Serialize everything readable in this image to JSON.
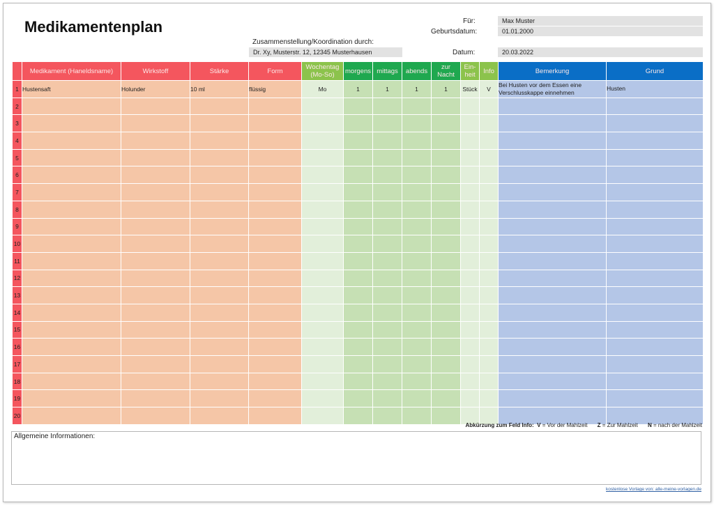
{
  "header": {
    "title": "Medikamentenplan",
    "coordination_label": "Zusammenstellung/Koordination durch:",
    "coordination_value": "Dr. Xy, Musterstr. 12, 12345 Musterhausen",
    "fuer_label": "Für:",
    "fuer_value": "Max Muster",
    "geburtsdatum_label": "Geburtsdatum:",
    "geburtsdatum_value": "01.01.2000",
    "datum_label": "Datum:",
    "datum_value": "20.03.2022"
  },
  "table": {
    "columns": {
      "medikament": "Medikament (Haneldsname)",
      "wirkstoff": "Wirkstoff",
      "staerke": "Stärke",
      "form": "Form",
      "wochentag_1": "Wochentag",
      "wochentag_2": "(Mo-So)",
      "morgens": "morgens",
      "mittags": "mittags",
      "abends": "abends",
      "zur_nacht_1": "zur",
      "zur_nacht_2": "Nacht",
      "einheit_1": "Ein-",
      "einheit_2": "heit",
      "info": "Info",
      "bemerkung": "Bemerkung",
      "grund": "Grund"
    },
    "rows": [
      {
        "num": "1",
        "medikament": "Hustensaft",
        "wirkstoff": "Holunder",
        "staerke": "10 ml",
        "form": "flüssig",
        "wochentag": "Mo",
        "morgens": "1",
        "mittags": "1",
        "abends": "1",
        "zur_nacht": "1",
        "einheit": "Stück",
        "info": "V",
        "bemerkung": "Bei Husten vor dem Essen eine Verschlusskappe einnehmen",
        "grund": "Husten"
      },
      {
        "num": "2"
      },
      {
        "num": "3"
      },
      {
        "num": "4"
      },
      {
        "num": "5"
      },
      {
        "num": "6"
      },
      {
        "num": "7"
      },
      {
        "num": "8"
      },
      {
        "num": "9"
      },
      {
        "num": "10"
      },
      {
        "num": "11"
      },
      {
        "num": "12"
      },
      {
        "num": "13"
      },
      {
        "num": "14"
      },
      {
        "num": "15"
      },
      {
        "num": "16"
      },
      {
        "num": "17"
      },
      {
        "num": "18"
      },
      {
        "num": "19"
      },
      {
        "num": "20"
      }
    ]
  },
  "legend": {
    "label": "Abkürzung zum Feld Info:",
    "v_key": "V",
    "v_text": "= Vor der Mahlzeit",
    "z_key": "Z",
    "z_text": "= Zur Mahlzeit",
    "n_key": "N",
    "n_text": "= nach der Mahlzeit"
  },
  "info_box": {
    "label": "Allgemeine Informationen:"
  },
  "footer": {
    "credit": "kostenlose Vorlage von: alle-meine-vorlagen.de"
  },
  "colors": {
    "red_header": "#f4565e",
    "peach_cell": "#f5c6a7",
    "light_green_header": "#8cc34c",
    "dark_green_header": "#1fa84f",
    "blue_header": "#0a6ec6",
    "blue_cell": "#b4c6e7"
  }
}
